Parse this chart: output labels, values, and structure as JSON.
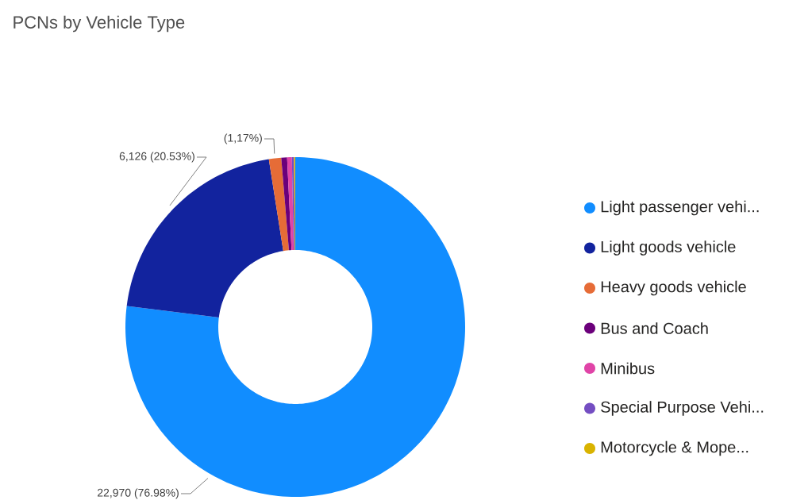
{
  "chart_data": {
    "type": "donut",
    "title": "PCNs by Vehicle Type",
    "categories": [
      "Light passenger vehi...",
      "Light goods vehicle",
      "Heavy goods vehicle",
      "Bus and Coach",
      "Minibus",
      "Special Purpose Vehi...",
      "Motorcycle & Mope..."
    ],
    "values": [
      76.98,
      20.53,
      1.17,
      0.55,
      0.45,
      0.2,
      0.12
    ],
    "colors": [
      "#118dff",
      "#12239e",
      "#e66c37",
      "#6b007b",
      "#e044a7",
      "#744ec2",
      "#d9b300"
    ],
    "value_labels": [
      "22,970 (76.98%)",
      "6,126 (20.53%)",
      "(1,17%)",
      null,
      null,
      null,
      null
    ],
    "legend": "right"
  }
}
